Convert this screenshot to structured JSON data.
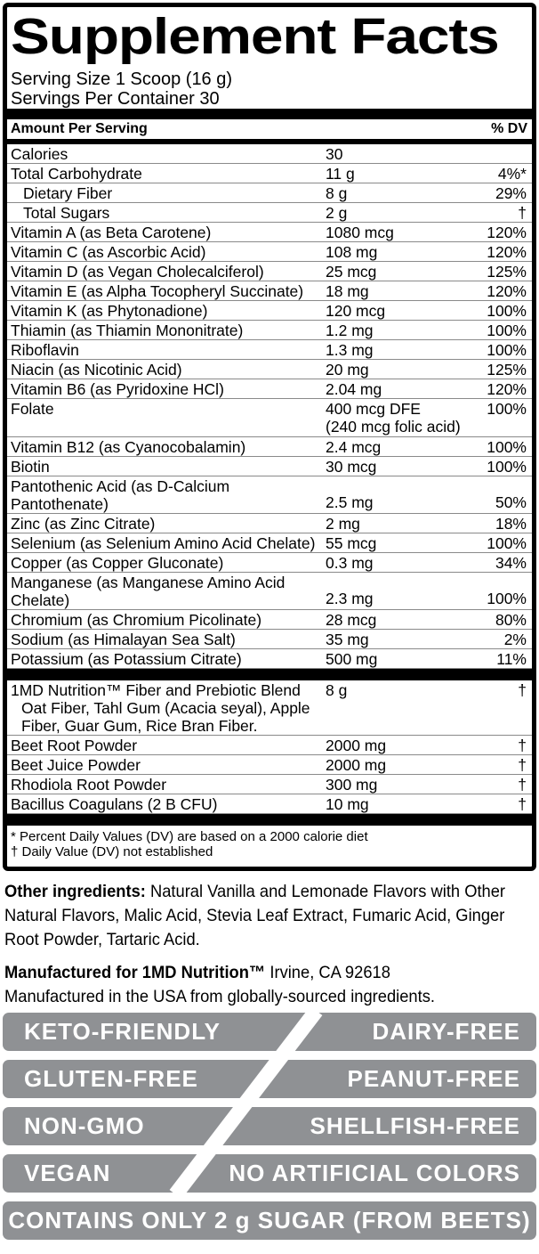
{
  "facts": {
    "title": "Supplement Facts",
    "serving_size": "Serving Size 1 Scoop (16 g)",
    "servings_per_container": "Servings Per Container 30",
    "columns": {
      "amount": "Amount Per Serving",
      "dv": "% DV"
    },
    "rows": [
      {
        "name": "Calories",
        "amount": "30",
        "dv": ""
      },
      {
        "name": "Total Carbohydrate",
        "amount": "11 g",
        "dv": "4%*"
      },
      {
        "name": "Dietary Fiber",
        "amount": "8 g",
        "dv": "29%",
        "indent": true
      },
      {
        "name": "Total Sugars",
        "amount": "2 g",
        "dv": "†",
        "indent": true
      },
      {
        "name": "Vitamin A (as Beta Carotene)",
        "amount": "1080 mcg",
        "dv": "120%"
      },
      {
        "name": "Vitamin C (as Ascorbic Acid)",
        "amount": "108 mg",
        "dv": "120%"
      },
      {
        "name": "Vitamin D (as Vegan Cholecalciferol)",
        "amount": "25 mcg",
        "dv": "125%"
      },
      {
        "name": "Vitamin E (as Alpha Tocopheryl Succinate)",
        "amount": "18 mg",
        "dv": "120%"
      },
      {
        "name": "Vitamin K (as Phytonadione)",
        "amount": "120 mcg",
        "dv": "100%"
      },
      {
        "name": "Thiamin (as Thiamin Mononitrate)",
        "amount": "1.2 mg",
        "dv": "100%"
      },
      {
        "name": "Riboflavin",
        "amount": "1.3 mg",
        "dv": "100%"
      },
      {
        "name": "Niacin (as Nicotinic Acid)",
        "amount": "20 mg",
        "dv": "125%"
      },
      {
        "name": "Vitamin B6 (as Pyridoxine HCl)",
        "amount": "2.04 mg",
        "dv": "120%"
      },
      {
        "name": "Folate",
        "amount": "400 mcg DFE\n(240 mcg folic acid)",
        "dv": "100%"
      },
      {
        "name": "Vitamin B12 (as Cyanocobalamin)",
        "amount": "2.4 mcg",
        "dv": "100%"
      },
      {
        "name": "Biotin",
        "amount": "30 mcg",
        "dv": "100%"
      },
      {
        "name": "Pantothenic Acid (as D-Calcium\nPantothenate)",
        "amount": "2.5 mg",
        "dv": "50%",
        "valign": "bottom"
      },
      {
        "name": "Zinc (as Zinc Citrate)",
        "amount": "2 mg",
        "dv": "18%"
      },
      {
        "name": "Selenium (as Selenium Amino Acid Chelate)",
        "amount": "55 mcg",
        "dv": "100%"
      },
      {
        "name": "Copper (as Copper Gluconate)",
        "amount": "0.3 mg",
        "dv": "34%"
      },
      {
        "name": "Manganese (as Manganese Amino Acid\nChelate)",
        "amount": "2.3 mg",
        "dv": "100%",
        "valign": "bottom"
      },
      {
        "name": "Chromium (as Chromium Picolinate)",
        "amount": "28 mcg",
        "dv": "80%"
      },
      {
        "name": "Sodium (as Himalayan Sea Salt)",
        "amount": "35 mg",
        "dv": "2%"
      },
      {
        "name": "Potassium (as Potassium Citrate)",
        "amount": "500 mg",
        "dv": "11%"
      },
      {
        "divider": true
      },
      {
        "name": "1MD Nutrition™ Fiber and Prebiotic Blend",
        "amount": "8 g",
        "dv": "†",
        "sub": "Oat Fiber, Tahl Gum (Acacia seyal), Apple\nFiber, Guar Gum, Rice Bran Fiber."
      },
      {
        "name": "Beet Root Powder",
        "amount": "2000 mg",
        "dv": "†"
      },
      {
        "name": "Beet Juice Powder",
        "amount": "2000 mg",
        "dv": "†"
      },
      {
        "name": "Rhodiola Root Powder",
        "amount": "300 mg",
        "dv": "†"
      },
      {
        "name": "Bacillus Coagulans (2 B CFU)",
        "amount": "10 mg",
        "dv": "†"
      },
      {
        "divider": true
      }
    ],
    "footnotes": [
      "* Percent Daily Values (DV) are based on a 2000 calorie diet",
      "† Daily Value (DV) not established"
    ]
  },
  "other_ingredients": {
    "label": "Other ingredients:",
    "text": " Natural Vanilla and Lemonade Flavors with Other Natural Flavors, Malic Acid, Stevia Leaf Extract, Fumaric Acid, Ginger Root Powder, Tartaric Acid."
  },
  "manufactured": {
    "bold": "Manufactured for 1MD Nutrition™",
    "rest": " Irvine, CA 92618",
    "line2": "Manufactured in the USA from globally-sourced ingredients."
  },
  "badges": {
    "rows": [
      {
        "left": "KETO-FRIENDLY",
        "right": "DAIRY-FREE"
      },
      {
        "left": "GLUTEN-FREE",
        "right": "PEANUT-FREE"
      },
      {
        "left": "NON-GMO",
        "right": "SHELLFISH-FREE"
      },
      {
        "left": "VEGAN",
        "right": "NO ARTIFICIAL COLORS"
      }
    ],
    "bottom": "CONTAINS ONLY 2 g SUGAR (FROM BEETS)"
  },
  "colors": {
    "badge_gray": "#8f9194",
    "bar_black": "#000000",
    "separator_gray": "#8a8a8a"
  }
}
